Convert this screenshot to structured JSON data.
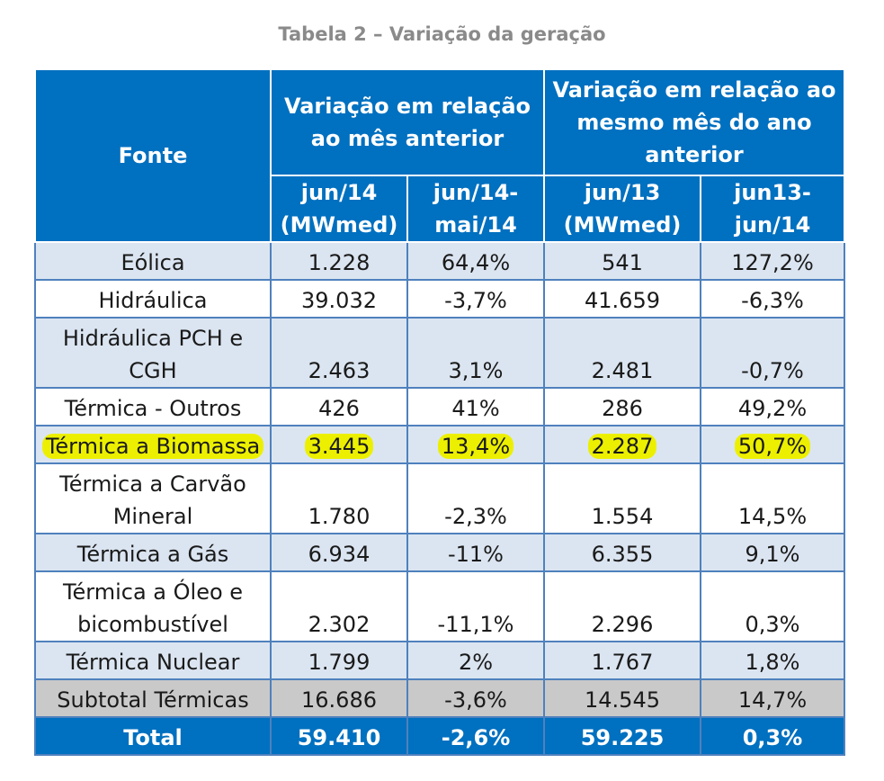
{
  "caption": "Tabela 2 – Variação da geração",
  "header": {
    "fonte": "Fonte",
    "group_prev_month": "Variação em relação ao mês anterior",
    "group_prev_year": "Variação em relação ao mesmo mês do ano anterior",
    "columns": [
      "jun/14 (MWmed)",
      "jun/14-mai/14",
      "jun/13 (MWmed)",
      "jun13-jun/14"
    ]
  },
  "rows": [
    {
      "fonte": "Eólica",
      "cells": [
        "1.228",
        "64,4%",
        "541",
        "127,2%"
      ],
      "style": "band",
      "highlight": false
    },
    {
      "fonte": "Hidráulica",
      "cells": [
        "39.032",
        "-3,7%",
        "41.659",
        "-6,3%"
      ],
      "style": "white",
      "highlight": false
    },
    {
      "fonte": "Hidráulica PCH e CGH",
      "cells": [
        "2.463",
        "3,1%",
        "2.481",
        "-0,7%"
      ],
      "style": "band",
      "highlight": false
    },
    {
      "fonte": "Térmica - Outros",
      "cells": [
        "426",
        "41%",
        "286",
        "49,2%"
      ],
      "style": "white",
      "highlight": false
    },
    {
      "fonte": "Térmica a Biomassa",
      "cells": [
        "3.445",
        "13,4%",
        "2.287",
        "50,7%"
      ],
      "style": "band",
      "highlight": true
    },
    {
      "fonte": "Térmica a Carvão Mineral",
      "cells": [
        "1.780",
        "-2,3%",
        "1.554",
        "14,5%"
      ],
      "style": "white",
      "highlight": false
    },
    {
      "fonte": "Térmica a Gás",
      "cells": [
        "6.934",
        "-11%",
        "6.355",
        "9,1%"
      ],
      "style": "band",
      "highlight": false
    },
    {
      "fonte": "Térmica a Óleo e bicombustível",
      "cells": [
        "2.302",
        "-11,1%",
        "2.296",
        "0,3%"
      ],
      "style": "white",
      "highlight": false
    },
    {
      "fonte": "Térmica Nuclear",
      "cells": [
        "1.799",
        "2%",
        "1.767",
        "1,8%"
      ],
      "style": "band",
      "highlight": false
    },
    {
      "fonte": "Subtotal Térmicas",
      "cells": [
        "16.686",
        "-3,6%",
        "14.545",
        "14,7%"
      ],
      "style": "sub",
      "highlight": false
    },
    {
      "fonte": "Total",
      "cells": [
        "59.410",
        "-2,6%",
        "59.225",
        "0,3%"
      ],
      "style": "total",
      "highlight": false
    }
  ],
  "colors": {
    "header_blue": "#0070c0",
    "band": "#dbe5f1",
    "subtotal": "#c9c9c9",
    "highlight": "#ecf000",
    "border": "#4f81bd"
  }
}
